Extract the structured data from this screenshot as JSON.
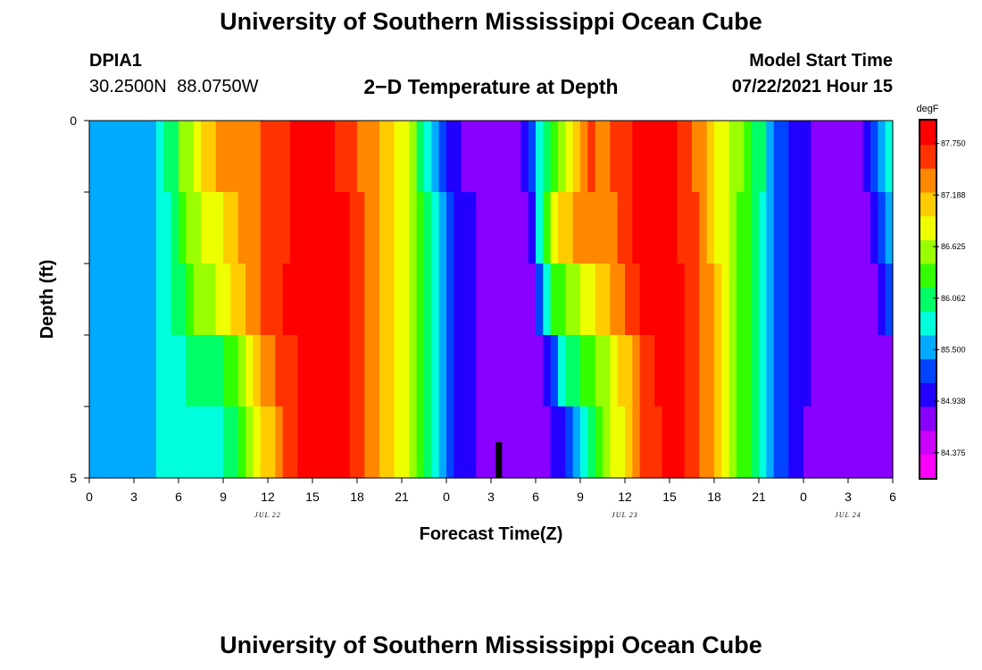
{
  "header": {
    "title": "University of Southern Mississippi Ocean Cube",
    "station_id": "DPIA1",
    "station_coords": "30.2500N  88.0750W",
    "plot_title": "2−D Temperature at Depth",
    "model_label": "Model Start Time",
    "model_time": "07/22/2021 Hour 15"
  },
  "footer": {
    "title": "University of Southern Mississippi Ocean Cube"
  },
  "chart_data": {
    "type": "heatmap",
    "title": "2−D Temperature at Depth",
    "xlabel": "Forecast Time(Z)",
    "ylabel": "Depth (ft)",
    "units": "degF",
    "x_unit": "hours since 07/22 00Z",
    "x_range": [
      0,
      54
    ],
    "x_tick_labels": [
      "0",
      "3",
      "6",
      "9",
      "12",
      "15",
      "18",
      "21",
      "0",
      "3",
      "6",
      "9",
      "12",
      "15",
      "18",
      "21",
      "0",
      "3",
      "6"
    ],
    "date_labels": [
      {
        "text": "JUL 22",
        "at_hour": 12
      },
      {
        "text": "JUL 23",
        "at_hour": 36
      },
      {
        "text": "JUL 24",
        "at_hour": 51
      }
    ],
    "y_range": [
      0,
      5
    ],
    "y_tick_labels": [
      "0",
      "5"
    ],
    "depth_levels": [
      0,
      1,
      2,
      3,
      4,
      5
    ],
    "colorbar": {
      "label": "degF",
      "min": 84.1,
      "max": 88.0,
      "tick_values": [
        87.75,
        87.188,
        86.625,
        86.062,
        85.5,
        84.938,
        84.375
      ],
      "tick_labels": [
        "87.750",
        "87.188",
        "86.625",
        "86.062",
        "85.500",
        "84.938",
        "84.375"
      ],
      "palette": [
        "#ff00ff",
        "#cc00ff",
        "#8800ff",
        "#2200ff",
        "#0044ff",
        "#00aaff",
        "#00ffdd",
        "#00ff66",
        "#33ff00",
        "#99ff00",
        "#eeff00",
        "#ffcc00",
        "#ff8800",
        "#ff3300",
        "#ff0000"
      ]
    },
    "current_time_marker_hour": 27.5,
    "time_step_hours": 0.5,
    "rows": [
      {
        "layer": "0-1 ft",
        "points": [
          [
            0,
            85.55
          ],
          [
            4,
            85.55
          ],
          [
            4.5,
            85.7
          ],
          [
            5.5,
            86.0
          ],
          [
            6.5,
            86.6
          ],
          [
            8,
            87.2
          ],
          [
            10,
            87.35
          ],
          [
            12,
            87.5
          ],
          [
            14,
            87.8
          ],
          [
            15.5,
            87.9
          ],
          [
            17.5,
            87.6
          ],
          [
            19.5,
            87.2
          ],
          [
            21,
            86.9
          ],
          [
            22,
            86.3
          ],
          [
            23,
            85.7
          ],
          [
            24,
            85.2
          ],
          [
            25,
            84.9
          ],
          [
            27,
            84.7
          ],
          [
            28.5,
            84.8
          ],
          [
            29.5,
            85.0
          ],
          [
            30,
            85.7
          ],
          [
            31,
            86.2
          ],
          [
            32,
            86.8
          ],
          [
            33.5,
            87.6
          ],
          [
            34.5,
            87.4
          ],
          [
            35.5,
            87.6
          ],
          [
            37,
            87.8
          ],
          [
            38.5,
            87.9
          ],
          [
            39.5,
            87.7
          ],
          [
            41.5,
            87.3
          ],
          [
            43,
            86.6
          ],
          [
            44.5,
            86.3
          ],
          [
            45.5,
            85.8
          ],
          [
            46.5,
            85.2
          ],
          [
            48,
            84.9
          ],
          [
            50,
            84.8
          ],
          [
            51.5,
            84.8
          ],
          [
            52.5,
            85.1
          ],
          [
            53.5,
            85.5
          ],
          [
            54,
            86.3
          ]
        ]
      },
      {
        "layer": "1-2 ft",
        "points": [
          [
            0,
            85.5
          ],
          [
            4,
            85.5
          ],
          [
            4.5,
            85.7
          ],
          [
            6,
            86.1
          ],
          [
            7,
            86.6
          ],
          [
            9,
            87.0
          ],
          [
            11,
            87.4
          ],
          [
            13,
            87.7
          ],
          [
            15,
            87.9
          ],
          [
            16.5,
            87.9
          ],
          [
            18.5,
            87.5
          ],
          [
            20,
            87.1
          ],
          [
            21.5,
            86.7
          ],
          [
            22.5,
            86.1
          ],
          [
            23.5,
            85.6
          ],
          [
            24.5,
            85.1
          ],
          [
            26,
            84.85
          ],
          [
            28,
            84.75
          ],
          [
            29.5,
            84.8
          ],
          [
            30,
            85.3
          ],
          [
            30.5,
            86.2
          ],
          [
            31.5,
            86.9
          ],
          [
            33,
            87.3
          ],
          [
            35,
            87.4
          ],
          [
            36.5,
            87.75
          ],
          [
            38,
            87.9
          ],
          [
            39.5,
            87.8
          ],
          [
            41.5,
            87.3
          ],
          [
            43,
            86.6
          ],
          [
            44.5,
            86.2
          ],
          [
            45.5,
            85.8
          ],
          [
            46.5,
            85.2
          ],
          [
            48,
            84.9
          ],
          [
            51,
            84.8
          ],
          [
            52.5,
            84.8
          ],
          [
            53.5,
            85.3
          ],
          [
            54,
            86.0
          ]
        ]
      },
      {
        "layer": "2-3 ft",
        "points": [
          [
            0,
            85.5
          ],
          [
            4,
            85.5
          ],
          [
            4.5,
            85.7
          ],
          [
            6,
            86.0
          ],
          [
            7,
            86.4
          ],
          [
            9,
            86.8
          ],
          [
            10.5,
            87.3
          ],
          [
            12.5,
            87.7
          ],
          [
            14.5,
            87.9
          ],
          [
            16.5,
            87.9
          ],
          [
            18.5,
            87.5
          ],
          [
            20,
            87.1
          ],
          [
            21.5,
            86.7
          ],
          [
            22.5,
            86.1
          ],
          [
            23.5,
            85.6
          ],
          [
            24.5,
            85.1
          ],
          [
            26,
            84.85
          ],
          [
            28,
            84.75
          ],
          [
            30,
            84.8
          ],
          [
            30.5,
            85.6
          ],
          [
            31,
            86.2
          ],
          [
            32,
            86.5
          ],
          [
            34,
            86.9
          ],
          [
            35.5,
            87.3
          ],
          [
            37,
            87.8
          ],
          [
            39,
            87.95
          ],
          [
            40.5,
            87.6
          ],
          [
            42,
            87.2
          ],
          [
            43,
            86.6
          ],
          [
            44.5,
            86.2
          ],
          [
            45.5,
            85.8
          ],
          [
            46.5,
            85.2
          ],
          [
            48,
            84.9
          ],
          [
            51,
            84.8
          ],
          [
            53,
            84.8
          ],
          [
            54,
            85.3
          ]
        ]
      },
      {
        "layer": "3-4 ft",
        "points": [
          [
            0,
            85.5
          ],
          [
            4,
            85.5
          ],
          [
            4.5,
            85.7
          ],
          [
            6,
            85.9
          ],
          [
            8,
            86.0
          ],
          [
            10,
            86.4
          ],
          [
            11.5,
            87.2
          ],
          [
            13,
            87.6
          ],
          [
            15,
            87.9
          ],
          [
            17,
            87.9
          ],
          [
            18.5,
            87.5
          ],
          [
            20,
            87.1
          ],
          [
            21.5,
            86.7
          ],
          [
            22.5,
            86.1
          ],
          [
            23.5,
            85.6
          ],
          [
            24.5,
            85.1
          ],
          [
            26,
            84.85
          ],
          [
            28,
            84.75
          ],
          [
            30,
            84.8
          ],
          [
            31,
            85.0
          ],
          [
            31.5,
            85.6
          ],
          [
            32.5,
            86.1
          ],
          [
            34.5,
            86.6
          ],
          [
            36,
            87.1
          ],
          [
            37.5,
            87.7
          ],
          [
            39.5,
            87.9
          ],
          [
            40.5,
            87.6
          ],
          [
            42,
            87.2
          ],
          [
            43,
            86.6
          ],
          [
            44.5,
            86.2
          ],
          [
            45.5,
            85.8
          ],
          [
            46.5,
            85.2
          ],
          [
            48,
            84.9
          ],
          [
            51,
            84.8
          ],
          [
            54,
            84.8
          ]
        ]
      },
      {
        "layer": "4-5 ft",
        "points": [
          [
            0,
            85.5
          ],
          [
            4,
            85.5
          ],
          [
            4.5,
            85.7
          ],
          [
            6,
            85.8
          ],
          [
            9,
            85.85
          ],
          [
            10,
            86.2
          ],
          [
            11.5,
            86.9
          ],
          [
            13,
            87.5
          ],
          [
            15,
            87.9
          ],
          [
            17,
            87.9
          ],
          [
            18.5,
            87.5
          ],
          [
            20,
            87.1
          ],
          [
            21.5,
            86.7
          ],
          [
            22.5,
            86.1
          ],
          [
            23.5,
            85.6
          ],
          [
            24.5,
            85.1
          ],
          [
            26,
            84.85
          ],
          [
            28,
            84.75
          ],
          [
            31,
            84.8
          ],
          [
            32,
            85.2
          ],
          [
            33,
            85.8
          ],
          [
            34.5,
            86.4
          ],
          [
            36,
            87.0
          ],
          [
            37.5,
            87.6
          ],
          [
            39.5,
            87.9
          ],
          [
            40.5,
            87.6
          ],
          [
            42,
            87.2
          ],
          [
            43,
            86.6
          ],
          [
            44.5,
            86.2
          ],
          [
            45.5,
            85.8
          ],
          [
            46.5,
            85.2
          ],
          [
            48,
            84.9
          ],
          [
            51,
            84.65
          ],
          [
            54,
            84.65
          ]
        ]
      }
    ]
  }
}
